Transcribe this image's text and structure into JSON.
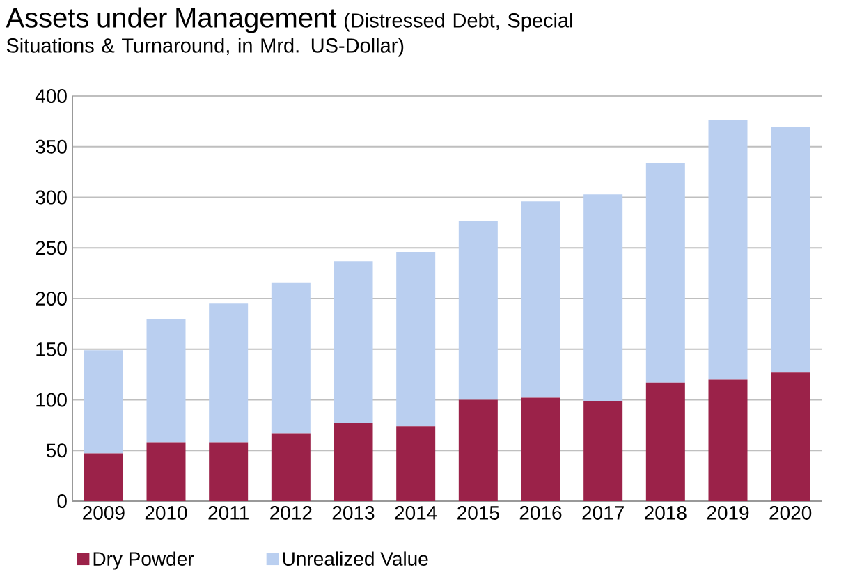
{
  "chart_data": {
    "type": "bar",
    "title": "Assets under Management",
    "subtitle": "(Distressed Debt, Special Situations & Turnaround, in Mrd. US-Dollar)",
    "categories": [
      "2009",
      "2010",
      "2011",
      "2012",
      "2013",
      "2014",
      "2015",
      "2016",
      "2017",
      "2018",
      "2019",
      "2020"
    ],
    "stacked": true,
    "series": [
      {
        "name": "Dry Powder",
        "color": "#9b2249",
        "values": [
          47,
          58,
          58,
          67,
          77,
          74,
          100,
          102,
          99,
          117,
          120,
          127
        ]
      },
      {
        "name": "Unrealized Value",
        "color": "#bacff0",
        "values": [
          102,
          122,
          137,
          149,
          160,
          172,
          177,
          194,
          204,
          217,
          256,
          242
        ]
      }
    ],
    "ylim": [
      0,
      400
    ],
    "yticks": [
      0,
      50,
      100,
      150,
      200,
      250,
      300,
      350,
      400
    ],
    "grid": "y",
    "legend": "bottom"
  }
}
